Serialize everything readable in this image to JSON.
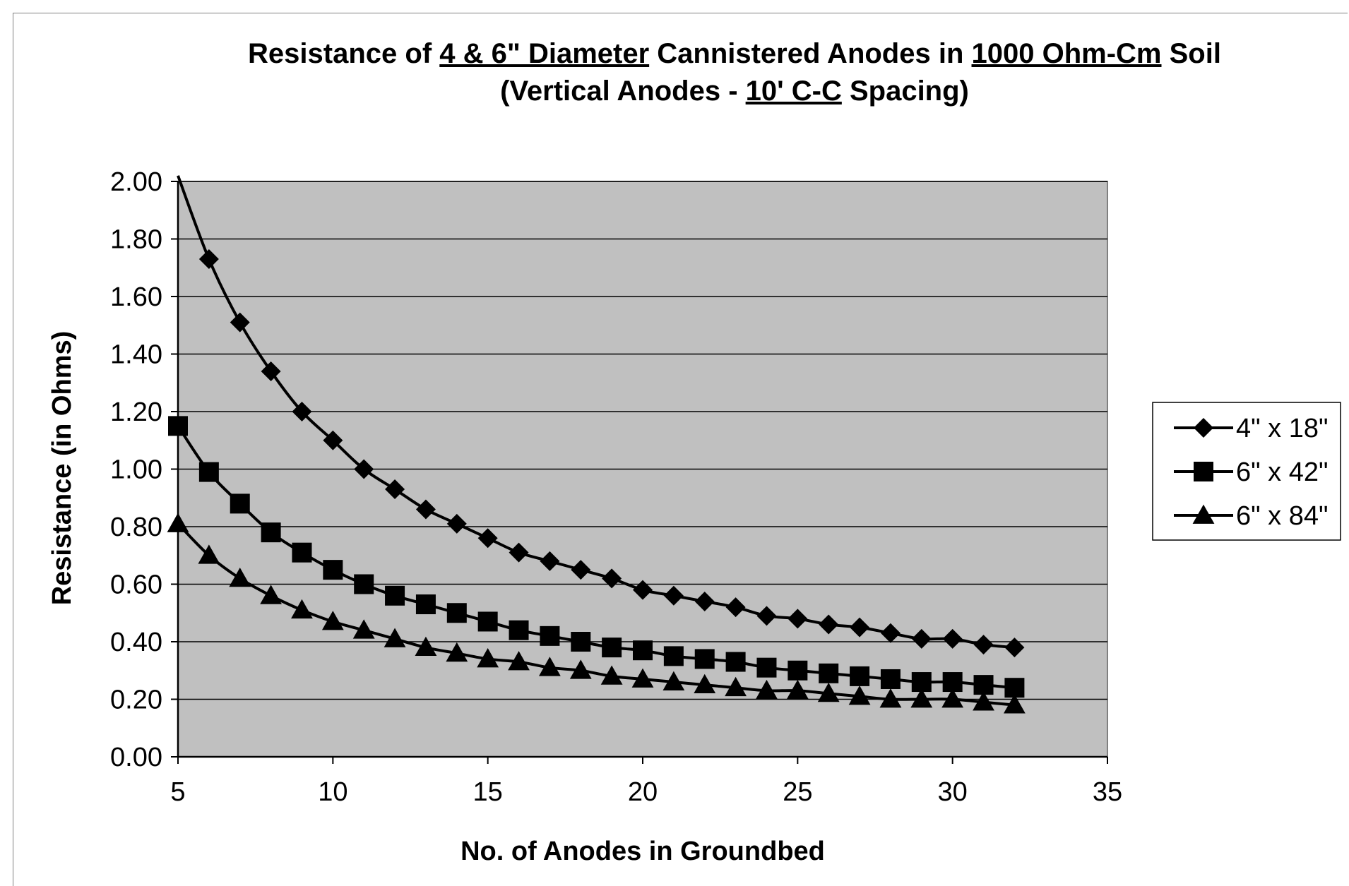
{
  "chart_data": {
    "type": "line",
    "title_line1": [
      {
        "text": "Resistance of ",
        "underline": false
      },
      {
        "text": "4 & 6\" Diameter",
        "underline": true
      },
      {
        "text": " Cannistered Anodes in ",
        "underline": false
      },
      {
        "text": "1000 Ohm-Cm",
        "underline": true
      },
      {
        "text": " Soil",
        "underline": false
      }
    ],
    "title_line2": [
      {
        "text": "(Vertical Anodes - ",
        "underline": false
      },
      {
        "text": "10' C-C",
        "underline": true
      },
      {
        "text": " Spacing)",
        "underline": false
      }
    ],
    "xlabel": "No. of Anodes in Groundbed",
    "ylabel": "Resistance (in Ohms)",
    "xlim": [
      5,
      35
    ],
    "ylim": [
      0,
      2
    ],
    "xticks": [
      5,
      10,
      15,
      20,
      25,
      30,
      35
    ],
    "yticks": [
      "0.00",
      "0.20",
      "0.40",
      "0.60",
      "0.80",
      "1.00",
      "1.20",
      "1.40",
      "1.60",
      "1.80",
      "2.00"
    ],
    "plot_background": "#c0c0c0",
    "grid": true,
    "legend_position": "right",
    "x": [
      5,
      6,
      7,
      8,
      9,
      10,
      11,
      12,
      13,
      14,
      15,
      16,
      17,
      18,
      19,
      20,
      21,
      22,
      23,
      24,
      25,
      26,
      27,
      28,
      29,
      30,
      31,
      32
    ],
    "series": [
      {
        "name": "4\" x 18\"",
        "marker": "diamond",
        "values": [
          2.02,
          1.73,
          1.51,
          1.34,
          1.2,
          1.1,
          1.0,
          0.93,
          0.86,
          0.81,
          0.76,
          0.71,
          0.68,
          0.65,
          0.62,
          0.58,
          0.56,
          0.54,
          0.52,
          0.49,
          0.48,
          0.46,
          0.45,
          0.43,
          0.41,
          0.41,
          0.39,
          0.38
        ]
      },
      {
        "name": "6\" x 42\"",
        "marker": "square",
        "values": [
          1.15,
          0.99,
          0.88,
          0.78,
          0.71,
          0.65,
          0.6,
          0.56,
          0.53,
          0.5,
          0.47,
          0.44,
          0.42,
          0.4,
          0.38,
          0.37,
          0.35,
          0.34,
          0.33,
          0.31,
          0.3,
          0.29,
          0.28,
          0.27,
          0.26,
          0.26,
          0.25,
          0.24
        ]
      },
      {
        "name": "6\" x 84\"",
        "marker": "triangle",
        "values": [
          0.81,
          0.7,
          0.62,
          0.56,
          0.51,
          0.47,
          0.44,
          0.41,
          0.38,
          0.36,
          0.34,
          0.33,
          0.31,
          0.3,
          0.28,
          0.27,
          0.26,
          0.25,
          0.24,
          0.23,
          0.23,
          0.22,
          0.21,
          0.2,
          0.2,
          0.2,
          0.19,
          0.18
        ]
      }
    ]
  }
}
